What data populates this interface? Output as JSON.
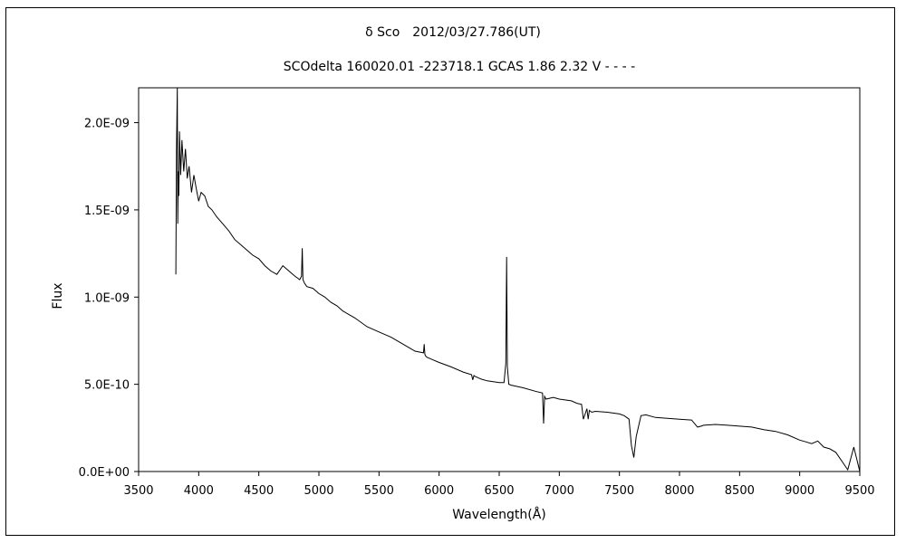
{
  "chart_data": {
    "type": "line",
    "title": "δ Sco　2012/03/27.786(UT)",
    "subtitle": "SCOdelta 160020.01 -223718.1 GCAS 1.86 2.32 V - - - -",
    "xlabel": "Wavelength(Å)",
    "ylabel": "Flux",
    "xlim": [
      3500,
      9500
    ],
    "ylim": [
      0,
      2.2e-09
    ],
    "xticks": [
      3500,
      4000,
      4500,
      5000,
      5500,
      6000,
      6500,
      7000,
      7500,
      8000,
      8500,
      9000,
      9500
    ],
    "xtick_labels": [
      "3500",
      "4000",
      "4500",
      "5000",
      "5500",
      "6000",
      "6500",
      "7000",
      "7500",
      "8000",
      "8500",
      "9000",
      "9500"
    ],
    "yticks": [
      0,
      5e-10,
      1e-09,
      1.5e-09,
      2e-09
    ],
    "ytick_labels": [
      "0.0E+00",
      "5.0E-10",
      "1.0E-09",
      "1.5E-09",
      "2.0E-09"
    ],
    "grid": false,
    "line_color": "#000000",
    "series": [
      {
        "x": [
          3810,
          3815,
          3822,
          3826,
          3830,
          3835,
          3840,
          3850,
          3860,
          3875,
          3890,
          3905,
          3920,
          3940,
          3960,
          3980,
          4000,
          4020,
          4050,
          4080,
          4110,
          4150,
          4200,
          4250,
          4300,
          4350,
          4400,
          4450,
          4500,
          4550,
          4600,
          4650,
          4700,
          4750,
          4800,
          4840,
          4855,
          4861,
          4867,
          4880,
          4900,
          4950,
          5000,
          5050,
          5100,
          5150,
          5200,
          5300,
          5400,
          5500,
          5600,
          5700,
          5800,
          5870,
          5876,
          5882,
          5890,
          5900,
          5950,
          6000,
          6100,
          6200,
          6270,
          6280,
          6290,
          6300,
          6350,
          6400,
          6450,
          6500,
          6540,
          6555,
          6562,
          6568,
          6580,
          6600,
          6700,
          6800,
          6860,
          6869,
          6878,
          6890,
          6950,
          7000,
          7100,
          7150,
          7185,
          7200,
          7230,
          7240,
          7250,
          7270,
          7300,
          7400,
          7500,
          7540,
          7580,
          7600,
          7620,
          7640,
          7680,
          7720,
          7800,
          7900,
          8000,
          8100,
          8150,
          8180,
          8200,
          8300,
          8400,
          8500,
          8600,
          8700,
          8800,
          8900,
          9000,
          9050,
          9100,
          9150,
          9200,
          9250,
          9300,
          9350,
          9400,
          9450,
          9500
        ],
        "y": [
          1.13e-09,
          1.85e-09,
          2.2e-09,
          1.42e-09,
          1.72e-09,
          1.58e-09,
          1.95e-09,
          1.7e-09,
          1.9e-09,
          1.72e-09,
          1.85e-09,
          1.68e-09,
          1.75e-09,
          1.6e-09,
          1.7e-09,
          1.62e-09,
          1.55e-09,
          1.6e-09,
          1.58e-09,
          1.52e-09,
          1.5e-09,
          1.46e-09,
          1.42e-09,
          1.38e-09,
          1.33e-09,
          1.3e-09,
          1.27e-09,
          1.24e-09,
          1.22e-09,
          1.18e-09,
          1.15e-09,
          1.13e-09,
          1.18e-09,
          1.15e-09,
          1.12e-09,
          1.1e-09,
          1.12e-09,
          1.28e-09,
          1.1e-09,
          1.08e-09,
          1.06e-09,
          1.05e-09,
          1.02e-09,
          1e-09,
          9.7e-10,
          9.5e-10,
          9.2e-10,
          8.8e-10,
          8.3e-10,
          8e-10,
          7.7e-10,
          7.3e-10,
          6.9e-10,
          6.8e-10,
          7.3e-10,
          6.7e-10,
          6.6e-10,
          6.55e-10,
          6.4e-10,
          6.25e-10,
          6e-10,
          5.7e-10,
          5.55e-10,
          5.25e-10,
          5.5e-10,
          5.45e-10,
          5.3e-10,
          5.2e-10,
          5.15e-10,
          5.1e-10,
          5.1e-10,
          6.2e-10,
          1.23e-09,
          6e-10,
          5e-10,
          4.95e-10,
          4.8e-10,
          4.6e-10,
          4.5e-10,
          2.75e-10,
          4.3e-10,
          4.15e-10,
          4.25e-10,
          4.15e-10,
          4.05e-10,
          3.9e-10,
          3.85e-10,
          3e-10,
          3.6e-10,
          3e-10,
          3.5e-10,
          3.4e-10,
          3.45e-10,
          3.4e-10,
          3.3e-10,
          3.2e-10,
          3e-10,
          1.5e-10,
          8e-11,
          2e-10,
          3.2e-10,
          3.25e-10,
          3.1e-10,
          3.05e-10,
          3e-10,
          2.95e-10,
          2.55e-10,
          2.6e-10,
          2.65e-10,
          2.7e-10,
          2.65e-10,
          2.6e-10,
          2.55e-10,
          2.4e-10,
          2.3e-10,
          2.1e-10,
          1.8e-10,
          1.7e-10,
          1.6e-10,
          1.75e-10,
          1.4e-10,
          1.3e-10,
          1.1e-10,
          6e-11,
          1e-11,
          1.4e-10,
          0.0
        ]
      }
    ]
  }
}
